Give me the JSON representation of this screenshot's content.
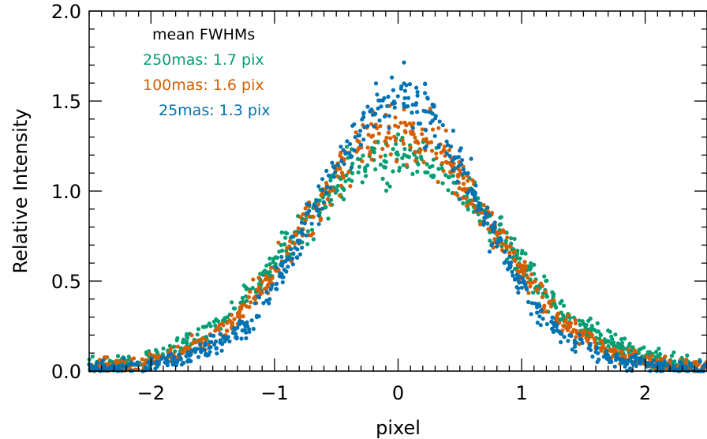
{
  "chart_data": {
    "type": "scatter",
    "xlabel": "pixel",
    "ylabel": "Relative Intensity",
    "xlim": [
      -2.5,
      2.5
    ],
    "ylim": [
      0.0,
      2.0
    ],
    "x_ticks": [
      -2,
      -1,
      0,
      1,
      2
    ],
    "x_tick_labels": [
      "−2",
      "−1",
      "0",
      "1",
      "2"
    ],
    "y_ticks": [
      0.0,
      0.5,
      1.0,
      1.5,
      2.0
    ],
    "y_tick_labels": [
      "0.0",
      "0.5",
      "1.0",
      "1.5",
      "2.0"
    ],
    "grid": false,
    "legend_title": "mean FWHMs",
    "legend_position": "top-left",
    "series": [
      {
        "name": "250mas: 1.7 pix",
        "color": "#009E73",
        "x": [
          -2.4,
          -2.2,
          -2.0,
          -1.8,
          -1.6,
          -1.4,
          -1.2,
          -1.0,
          -0.8,
          -0.6,
          -0.4,
          -0.2,
          0.0,
          0.2,
          0.4,
          0.6,
          0.8,
          1.0,
          1.2,
          1.4,
          1.6,
          1.8,
          2.0,
          2.2,
          2.4
        ],
        "y": [
          0.03,
          0.05,
          0.08,
          0.13,
          0.2,
          0.3,
          0.43,
          0.6,
          0.78,
          0.95,
          1.08,
          1.17,
          1.2,
          1.17,
          1.08,
          0.95,
          0.78,
          0.6,
          0.43,
          0.3,
          0.2,
          0.13,
          0.08,
          0.05,
          0.03
        ]
      },
      {
        "name": "100mas: 1.6 pix",
        "color": "#D55E00",
        "x": [
          -2.4,
          -2.2,
          -2.0,
          -1.8,
          -1.6,
          -1.4,
          -1.2,
          -1.0,
          -0.8,
          -0.6,
          -0.4,
          -0.2,
          0.0,
          0.2,
          0.4,
          0.6,
          0.8,
          1.0,
          1.2,
          1.4,
          1.6,
          1.8,
          2.0,
          2.2,
          2.4
        ],
        "y": [
          0.02,
          0.03,
          0.06,
          0.09,
          0.15,
          0.24,
          0.37,
          0.55,
          0.76,
          0.98,
          1.17,
          1.3,
          1.35,
          1.3,
          1.17,
          0.98,
          0.76,
          0.55,
          0.37,
          0.24,
          0.15,
          0.09,
          0.06,
          0.03,
          0.02
        ]
      },
      {
        "name": "25mas: 1.3 pix",
        "color": "#0072B2",
        "x": [
          -2.4,
          -2.2,
          -2.0,
          -1.8,
          -1.6,
          -1.4,
          -1.2,
          -1.0,
          -0.8,
          -0.6,
          -0.4,
          -0.2,
          0.0,
          0.2,
          0.4,
          0.6,
          0.8,
          1.0,
          1.2,
          1.4,
          1.6,
          1.8,
          2.0,
          2.2,
          2.4
        ],
        "y": [
          0.01,
          0.02,
          0.04,
          0.06,
          0.1,
          0.17,
          0.28,
          0.47,
          0.72,
          1.0,
          1.27,
          1.47,
          1.55,
          1.47,
          1.27,
          1.0,
          0.72,
          0.47,
          0.28,
          0.17,
          0.1,
          0.06,
          0.04,
          0.02,
          0.01
        ]
      }
    ]
  }
}
